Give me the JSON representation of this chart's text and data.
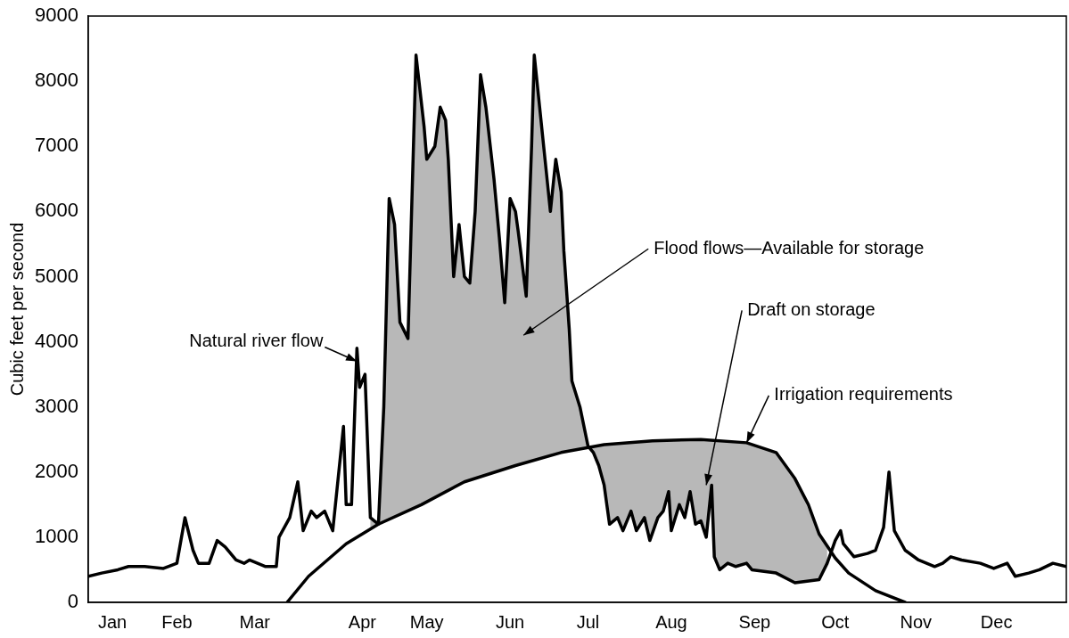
{
  "chart_data": {
    "type": "line",
    "ylabel": "Cubic feet per second",
    "xlim": [
      "--01-01",
      "--12-31"
    ],
    "ylim": [
      0,
      9000
    ],
    "xticks": [
      {
        "value": "--01-10",
        "label": "Jan"
      },
      {
        "value": "--02-03",
        "label": "Feb"
      },
      {
        "value": "--03-04",
        "label": "Mar"
      },
      {
        "value": "--04-13",
        "label": "Apr"
      },
      {
        "value": "--05-07",
        "label": "May"
      },
      {
        "value": "--06-07",
        "label": "Jun"
      },
      {
        "value": "--07-06",
        "label": "Jul"
      },
      {
        "value": "--08-06",
        "label": "Aug"
      },
      {
        "value": "--09-06",
        "label": "Sep"
      },
      {
        "value": "--10-06",
        "label": "Oct"
      },
      {
        "value": "--11-05",
        "label": "Nov"
      },
      {
        "value": "--12-05",
        "label": "Dec"
      }
    ],
    "yticks": [
      0,
      1000,
      2000,
      3000,
      4000,
      5000,
      6000,
      7000,
      8000,
      9000
    ],
    "grid": false,
    "legend": false,
    "marker": "none",
    "line_style": "solid",
    "series": [
      {
        "color": "#000000",
        "x": [
          "--01-01",
          "--01-06",
          "--01-12",
          "--01-16",
          "--01-22",
          "--01-29",
          "--02-03",
          "--02-06",
          "--02-09",
          "--02-11",
          "--02-15",
          "--02-18",
          "--02-21",
          "--02-25",
          "--02-28",
          "--03-02",
          "--03-05",
          "--03-08",
          "--03-12",
          "--03-13",
          "--03-17",
          "--03-20",
          "--03-22",
          "--03-24",
          "--03-25",
          "--03-27",
          "--03-30",
          "--04-02",
          "--04-06",
          "--04-07",
          "--04-09",
          "--04-11",
          "--04-12",
          "--04-14",
          "--04-16",
          "--04-19",
          "--04-21",
          "--04-23",
          "--04-25",
          "--04-27",
          "--04-30",
          "--05-01",
          "--05-03",
          "--05-06",
          "--05-07",
          "--05-10",
          "--05-12",
          "--05-14",
          "--05-15",
          "--05-17",
          "--05-19",
          "--05-21",
          "--05-23",
          "--05-25",
          "--05-27",
          "--05-29",
          "--06-01",
          "--06-03",
          "--06-05",
          "--06-07",
          "--06-09",
          "--06-10",
          "--06-13",
          "--06-15",
          "--06-16",
          "--06-18",
          "--06-20",
          "--06-22",
          "--06-24",
          "--06-26",
          "--06-27",
          "--06-29",
          "--06-30",
          "--07-03",
          "--07-06",
          "--07-08",
          "--07-10",
          "--07-12",
          "--07-14",
          "--07-17",
          "--07-19",
          "--07-22",
          "--07-24",
          "--07-27",
          "--07-29",
          "--08-01",
          "--08-03",
          "--08-05",
          "--08-06",
          "--08-09",
          "--08-11",
          "--08-13",
          "--08-15",
          "--08-17",
          "--08-19",
          "--08-21",
          "--08-22",
          "--08-24",
          "--08-27",
          "--08-30",
          "--09-03",
          "--09-05",
          "--09-14",
          "--09-21",
          "--09-30",
          "--10-03",
          "--10-06",
          "--10-08",
          "--10-09",
          "--10-13",
          "--10-18",
          "--10-21",
          "--10-24",
          "--10-26",
          "--10-28",
          "--11-01",
          "--11-06",
          "--11-12",
          "--11-15",
          "--11-18",
          "--11-22",
          "--11-29",
          "--12-04",
          "--12-09",
          "--12-12",
          "--12-17",
          "--12-21",
          "--12-26",
          "--12-31"
        ],
        "values": [
          400,
          450,
          500,
          550,
          550,
          520,
          600,
          1300,
          800,
          600,
          600,
          950,
          850,
          650,
          600,
          650,
          600,
          550,
          550,
          1000,
          1300,
          1850,
          1100,
          1300,
          1400,
          1300,
          1400,
          1100,
          2700,
          1500,
          1500,
          3900,
          3300,
          3500,
          1300,
          1200,
          3000,
          6200,
          5800,
          4300,
          4050,
          5500,
          8400,
          7300,
          6800,
          7000,
          7600,
          7400,
          6800,
          5000,
          5800,
          5000,
          4900,
          6000,
          8100,
          7600,
          6500,
          5600,
          4600,
          6200,
          6000,
          5700,
          4700,
          7000,
          8400,
          7600,
          6800,
          6000,
          6800,
          6300,
          5400,
          4200,
          3400,
          3000,
          2400,
          2300,
          2100,
          1800,
          1200,
          1300,
          1100,
          1400,
          1100,
          1300,
          950,
          1300,
          1400,
          1700,
          1100,
          1500,
          1300,
          1700,
          1200,
          1250,
          1000,
          1800,
          700,
          500,
          600,
          550,
          600,
          500,
          450,
          300,
          350,
          600,
          950,
          1100,
          900,
          700,
          750,
          800,
          1150,
          2000,
          1100,
          800,
          650,
          550,
          600,
          700,
          650,
          600,
          520,
          600,
          400,
          450,
          500,
          600,
          550
        ],
        "lower": [
          null,
          null,
          null,
          null,
          null,
          null,
          null,
          null,
          null,
          null,
          null,
          null,
          null,
          null,
          null,
          null,
          null,
          null,
          null,
          null,
          null,
          null,
          null,
          null,
          null,
          null,
          null,
          null,
          null,
          null,
          null,
          null,
          null,
          null,
          1130,
          1200,
          1240,
          1280,
          1310,
          1350,
          1410,
          1430,
          1460,
          1520,
          1540,
          1610,
          1650,
          1700,
          1720,
          1760,
          1810,
          1850,
          1880,
          1900,
          1930,
          1960,
          2000,
          2020,
          2050,
          2070,
          2100,
          2110,
          2150,
          2170,
          2180,
          2210,
          2230,
          2250,
          2280,
          2300,
          2310,
          2320,
          2330,
          2350,
          2380,
          2300,
          2100,
          1800,
          1200,
          1300,
          1100,
          1400,
          1100,
          1300,
          950,
          1300,
          1400,
          1700,
          1100,
          1500,
          1300,
          1700,
          1200,
          1250,
          1000,
          1800,
          700,
          500,
          600,
          550,
          600,
          500,
          450,
          300,
          350,
          600,
          null,
          null,
          null,
          null,
          null,
          null,
          null,
          null,
          null,
          null,
          null,
          null,
          null,
          null,
          null,
          null,
          null,
          null,
          null,
          null,
          null,
          null,
          null
        ],
        "upper": [
          null,
          null,
          null,
          null,
          null,
          null,
          null,
          null,
          null,
          null,
          null,
          null,
          null,
          null,
          null,
          null,
          null,
          null,
          null,
          null,
          null,
          null,
          null,
          null,
          null,
          null,
          null,
          null,
          null,
          null,
          null,
          null,
          null,
          null,
          1300,
          1200,
          3000,
          6200,
          5800,
          4300,
          4050,
          5500,
          8400,
          7300,
          6800,
          7000,
          7600,
          7400,
          6800,
          5000,
          5800,
          5000,
          4900,
          6000,
          8100,
          7600,
          6500,
          5600,
          4600,
          6200,
          6000,
          5700,
          4700,
          7000,
          8400,
          7600,
          6800,
          6000,
          6800,
          6300,
          5400,
          4200,
          3400,
          3000,
          2400,
          2390,
          2410,
          2420,
          2430,
          2440,
          2440,
          2450,
          2460,
          2470,
          2480,
          2480,
          2480,
          2490,
          2490,
          2490,
          2490,
          2500,
          2500,
          2500,
          2490,
          2490,
          2490,
          2480,
          2470,
          2460,
          2450,
          2420,
          2300,
          1900,
          1050,
          870,
          null,
          null,
          null,
          null,
          null,
          null,
          null,
          null,
          null,
          null,
          null,
          null,
          null,
          null,
          null,
          null,
          null,
          null,
          null,
          null,
          null,
          null,
          null
        ]
      },
      {
        "color": "#000000",
        "x": [
          "--03-16",
          "--03-24",
          "--04-07",
          "--04-19",
          "--05-05",
          "--05-21",
          "--06-09",
          "--06-26",
          "--07-12",
          "--07-30",
          "--08-17",
          "--09-03",
          "--09-14",
          "--09-21",
          "--09-26",
          "--09-30",
          "--10-06",
          "--10-11",
          "--10-21",
          "--11-01"
        ],
        "values": [
          0,
          400,
          900,
          1200,
          1500,
          1850,
          2100,
          2300,
          2420,
          2480,
          2500,
          2450,
          2300,
          1900,
          1500,
          1050,
          680,
          450,
          180,
          0
        ]
      }
    ],
    "annotations": [
      {
        "text": "Natural river flow",
        "x": "--04-11",
        "y": 3700
      },
      {
        "text": "Flood flows—Available for storage",
        "x": "--06-12",
        "y": 4100
      },
      {
        "text": "Draft on storage",
        "x": "--08-19",
        "y": 1800
      },
      {
        "text": "Irrigation requirements",
        "x": "--09-03",
        "y": 2450
      }
    ]
  }
}
